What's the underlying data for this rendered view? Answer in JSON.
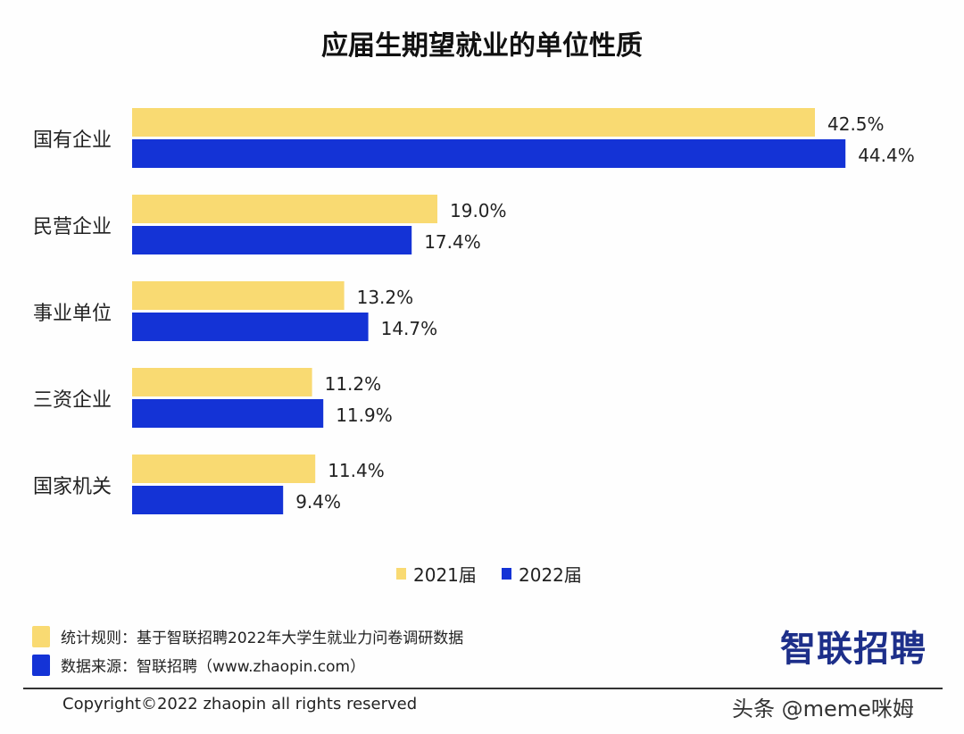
{
  "chart_data": {
    "type": "bar",
    "orientation": "horizontal",
    "title": "应届生期望就业的单位性质",
    "categories": [
      "国有企业",
      "民营企业",
      "事业单位",
      "三资企业",
      "国家机关"
    ],
    "series": [
      {
        "name": "2021届",
        "values": [
          42.5,
          19.0,
          13.2,
          11.2,
          11.4
        ],
        "labels": [
          "42.5%",
          "19.0%",
          "13.2%",
          "11.2%",
          "11.4%"
        ],
        "color": "#F9DA72"
      },
      {
        "name": "2022届",
        "values": [
          44.4,
          17.4,
          14.7,
          11.9,
          9.4
        ],
        "labels": [
          "44.4%",
          "17.4%",
          "14.7%",
          "11.9%",
          "9.4%"
        ],
        "color": "#1433D6"
      }
    ],
    "unit": "%",
    "xlim": [
      0,
      50
    ],
    "grid": false,
    "legend": "bottom"
  },
  "notes": [
    {
      "text": "统计规则：基于智联招聘2022年大学生就业力问卷调研数据",
      "color": "#F9DA72"
    },
    {
      "text": "数据来源：智联招聘（www.zhaopin.com）",
      "color": "#1433D6"
    }
  ],
  "logo": "智联招聘",
  "copyright": "Copyright©2022 zhaopin all rights reserved",
  "watermark": "头条 @meme咪姆"
}
